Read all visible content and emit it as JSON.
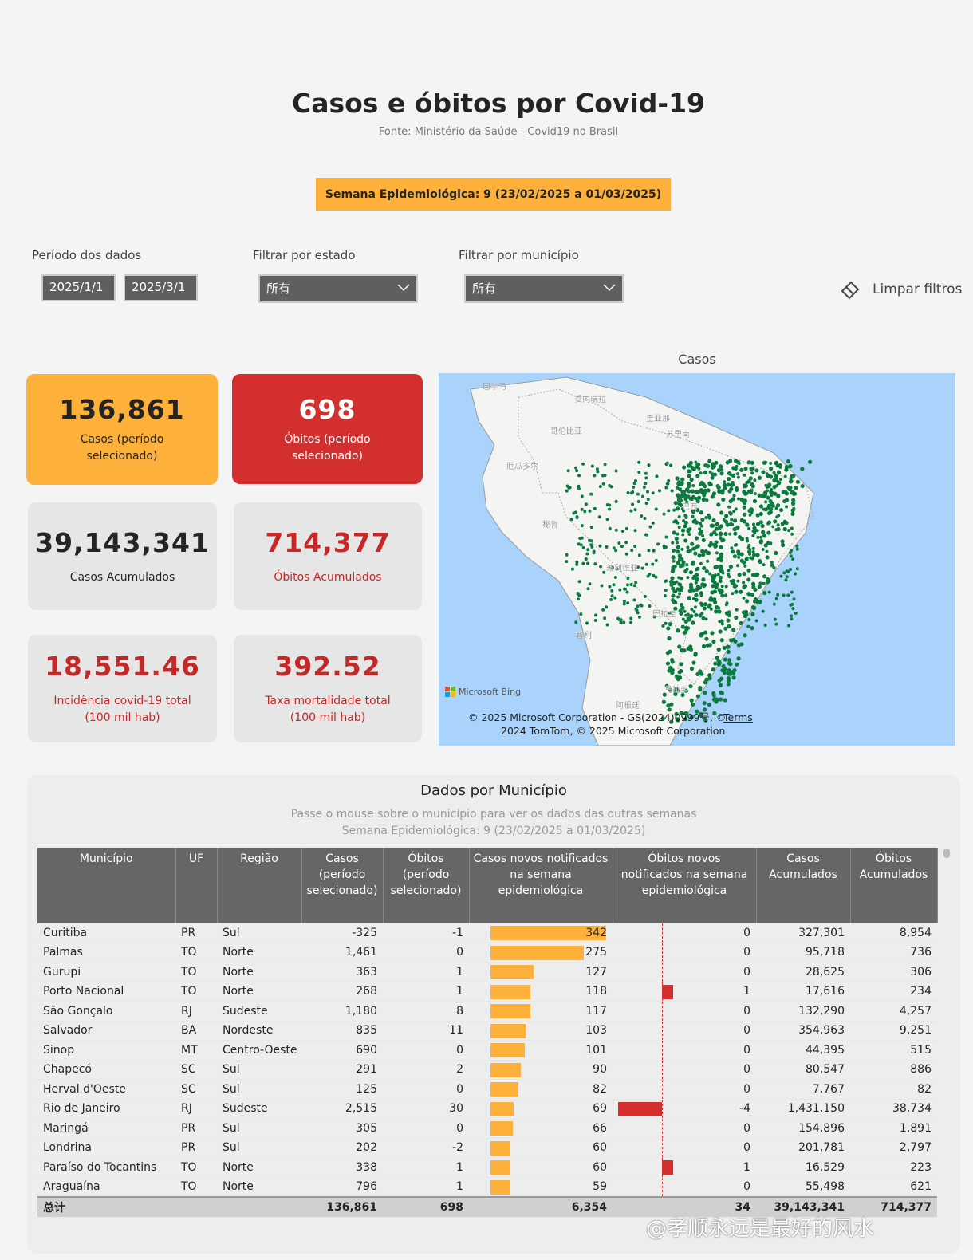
{
  "header": {
    "title": "Casos e óbitos por Covid-19",
    "source_prefix": "Fonte: Ministério da Saúde - ",
    "source_link": "Covid19 no Brasil"
  },
  "week_banner": "Semana Epidemiológica: 9 (23/02/2025 a 01/03/2025)",
  "filters": {
    "period_label": "Período dos dados",
    "date_start": "2025/1/1",
    "date_end": "2025/3/1",
    "state_label": "Filtrar por estado",
    "state_value": "所有",
    "municipality_label": "Filtrar por município",
    "municipality_value": "所有",
    "clear": "Limpar filtros"
  },
  "cards": [
    {
      "value": "136,861",
      "label": "Casos (período selecionado)"
    },
    {
      "value": "698",
      "label": "Óbitos (período selecionado)"
    },
    {
      "value": "39,143,341",
      "label": "Casos Acumulados"
    },
    {
      "value": "714,377",
      "label": "Óbitos Acumulados"
    },
    {
      "value": "18,551.46",
      "label": "Incidência covid-19 total (100 mil hab)"
    },
    {
      "value": "392.52",
      "label": "Taxa mortalidade total (100 mil hab)"
    }
  ],
  "map": {
    "title": "Casos",
    "labels": [
      "委内瑞拉",
      "哥伦比亚",
      "厄瓜多尔",
      "秘鲁",
      "巴西",
      "玻利维亚",
      "巴拉圭",
      "智利",
      "阿根廷",
      "乌拉圭",
      "圭亚那",
      "苏里南",
      "巴拿马"
    ],
    "brand": "Microsoft Bing",
    "attribution_1": "© 2025 Microsoft Corporation - GS(2024)0999号, ©",
    "terms": "Terms",
    "attribution_2": "2024 TomTom, © 2025 Microsoft Corporation"
  },
  "table": {
    "title": "Dados por Município",
    "subtitle_1": "Passe o mouse sobre o município para ver os dados das outras semanas",
    "subtitle_2": "Semana Epidemiológica: 9 (23/02/2025 a 01/03/2025)",
    "columns": [
      "Município",
      "UF",
      "Região",
      "Casos (período selecionado)",
      "Óbitos (período selecionado)",
      "Casos novos notificados na semana epidemiológica",
      "Óbitos novos notificados na semana epidemiológica",
      "Casos Acumulados",
      "Óbitos Acumulados"
    ],
    "rows": [
      [
        "Curitiba",
        "PR",
        "Sul",
        "-325",
        "-1",
        342,
        0,
        "327,301",
        "8,954"
      ],
      [
        "Palmas",
        "TO",
        "Norte",
        "1,461",
        "0",
        275,
        0,
        "95,718",
        "736"
      ],
      [
        "Gurupi",
        "TO",
        "Norte",
        "363",
        "1",
        127,
        0,
        "28,625",
        "306"
      ],
      [
        "Porto Nacional",
        "TO",
        "Norte",
        "268",
        "1",
        118,
        1,
        "17,616",
        "234"
      ],
      [
        "São Gonçalo",
        "RJ",
        "Sudeste",
        "1,180",
        "8",
        117,
        0,
        "132,290",
        "4,257"
      ],
      [
        "Salvador",
        "BA",
        "Nordeste",
        "835",
        "11",
        103,
        0,
        "354,963",
        "9,251"
      ],
      [
        "Sinop",
        "MT",
        "Centro-Oeste",
        "690",
        "0",
        101,
        0,
        "44,395",
        "515"
      ],
      [
        "Chapecó",
        "SC",
        "Sul",
        "291",
        "2",
        90,
        0,
        "80,547",
        "886"
      ],
      [
        "Herval d'Oeste",
        "SC",
        "Sul",
        "125",
        "0",
        82,
        0,
        "7,767",
        "82"
      ],
      [
        "Rio de Janeiro",
        "RJ",
        "Sudeste",
        "2,515",
        "30",
        69,
        -4,
        "1,431,150",
        "38,734"
      ],
      [
        "Maringá",
        "PR",
        "Sul",
        "305",
        "0",
        66,
        0,
        "154,896",
        "1,891"
      ],
      [
        "Londrina",
        "PR",
        "Sul",
        "202",
        "-2",
        60,
        0,
        "201,781",
        "2,797"
      ],
      [
        "Paraíso do Tocantins",
        "TO",
        "Norte",
        "338",
        "1",
        60,
        1,
        "16,529",
        "223"
      ],
      [
        "Araguaína",
        "TO",
        "Norte",
        "796",
        "1",
        59,
        0,
        "55,498",
        "621"
      ]
    ],
    "total": [
      "总计",
      "",
      "",
      "136,861",
      "698",
      "6,354",
      "34",
      "39,143,341",
      "714,377"
    ]
  },
  "watermark": "@孝顺永远是最好的风水"
}
